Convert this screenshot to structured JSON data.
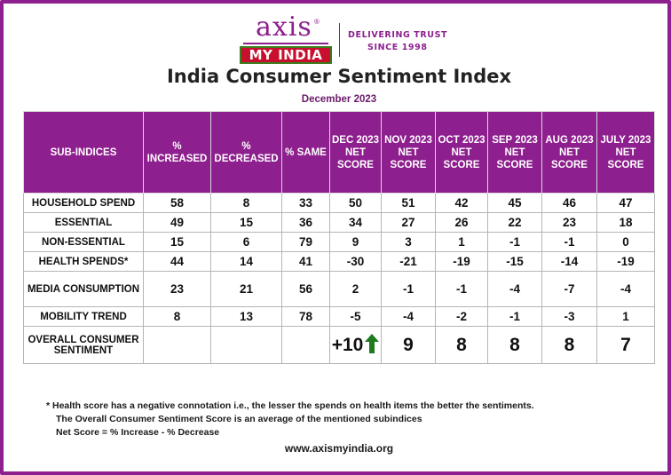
{
  "logo": {
    "word": "axis",
    "reg": "®",
    "sub": "MY INDIA"
  },
  "tagline": {
    "line1": "DELIVERING TRUST",
    "line2": "SINCE 1998"
  },
  "title": "India Consumer Sentiment Index",
  "subtitle": "December 2023",
  "table": {
    "headers": [
      "SUB-INDICES",
      "% INCREASED",
      "% DECREASED",
      "% SAME",
      "DEC 2023 NET SCORE",
      "NOV 2023 NET SCORE",
      "OCT 2023 NET SCORE",
      "SEP 2023 NET SCORE",
      "AUG 2023 NET SCORE",
      "JULY 2023 NET SCORE"
    ],
    "rows": [
      [
        "HOUSEHOLD SPEND",
        "58",
        "8",
        "33",
        "50",
        "51",
        "42",
        "45",
        "46",
        "47"
      ],
      [
        "ESSENTIAL",
        "49",
        "15",
        "36",
        "34",
        "27",
        "26",
        "22",
        "23",
        "18"
      ],
      [
        "NON-ESSENTIAL",
        "15",
        "6",
        "79",
        "9",
        "3",
        "1",
        "-1",
        "-1",
        "0"
      ],
      [
        "HEALTH SPENDS*",
        "44",
        "14",
        "41",
        "-30",
        "-21",
        "-19",
        "-15",
        "-14",
        "-19"
      ],
      [
        "MEDIA CONSUMPTION",
        "23",
        "21",
        "56",
        "2",
        "-1",
        "-1",
        "-4",
        "-7",
        "-4"
      ],
      [
        "MOBILITY TREND",
        "8",
        "13",
        "78",
        "-5",
        "-4",
        "-2",
        "-1",
        "-3",
        "1"
      ]
    ],
    "overall": [
      "OVERALL CONSUMER SENTIMENT",
      "",
      "",
      "",
      "+10",
      "9",
      "8",
      "8",
      "8",
      "7"
    ]
  },
  "notes": {
    "line1": "*  Health score has a negative connotation i.e., the lesser the spends on health items the better the sentiments.",
    "line2": "The Overall Consumer Sentiment Score is an average of the mentioned subindices",
    "line3": "Net Score = % Increase - % Decrease"
  },
  "website": "www.axismyindia.org",
  "colors": {
    "brand_purple": "#8e1f8e",
    "logo_red": "#c8102e",
    "arrow_green": "#1e7a1e"
  }
}
